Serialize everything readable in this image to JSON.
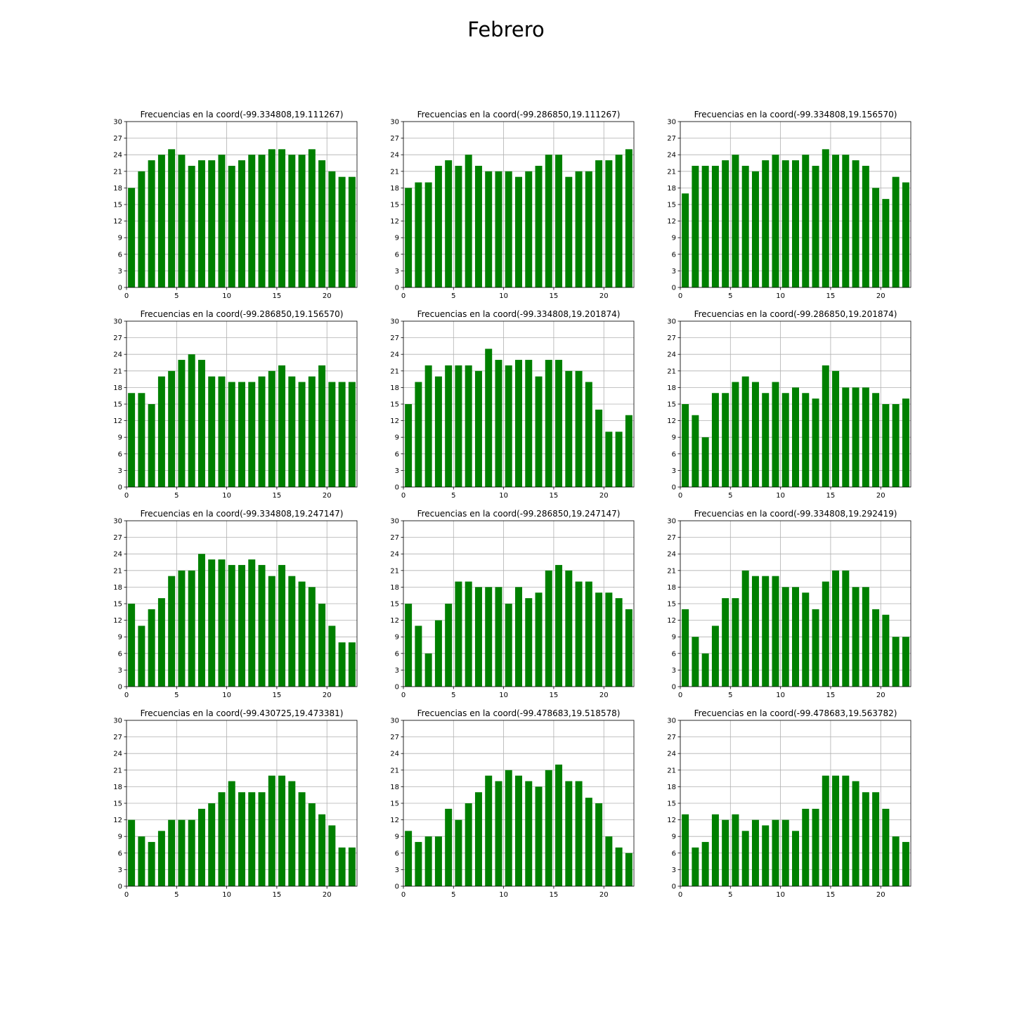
{
  "figure_title": "Febrero",
  "bar_color": "#008000",
  "grid_color": "#b0b0b0",
  "chart_data": [
    {
      "type": "bar",
      "title": "Frecuencias en la coord(-99.334808,19.111267)",
      "x": [
        0,
        1,
        2,
        3,
        4,
        5,
        6,
        7,
        8,
        9,
        10,
        11,
        12,
        13,
        14,
        15,
        16,
        17,
        18,
        19,
        20,
        21,
        22
      ],
      "values": [
        18,
        21,
        23,
        24,
        25,
        24,
        22,
        23,
        23,
        24,
        22,
        23,
        24,
        24,
        25,
        25,
        24,
        24,
        25,
        23,
        21,
        20,
        20
      ],
      "xlim": [
        0,
        23
      ],
      "ylim": [
        0,
        30
      ],
      "xticks": [
        0,
        5,
        10,
        15,
        20
      ],
      "yticks": [
        0,
        3,
        6,
        9,
        12,
        15,
        18,
        21,
        24,
        27,
        30
      ],
      "grid": true
    },
    {
      "type": "bar",
      "title": "Frecuencias en la coord(-99.286850,19.111267)",
      "x": [
        0,
        1,
        2,
        3,
        4,
        5,
        6,
        7,
        8,
        9,
        10,
        11,
        12,
        13,
        14,
        15,
        16,
        17,
        18,
        19,
        20,
        21,
        22
      ],
      "values": [
        18,
        19,
        19,
        22,
        23,
        22,
        24,
        22,
        21,
        21,
        21,
        20,
        21,
        22,
        24,
        24,
        20,
        21,
        21,
        23,
        23,
        24,
        25
      ],
      "xlim": [
        0,
        23
      ],
      "ylim": [
        0,
        30
      ],
      "xticks": [
        0,
        5,
        10,
        15,
        20
      ],
      "yticks": [
        0,
        3,
        6,
        9,
        12,
        15,
        18,
        21,
        24,
        27,
        30
      ],
      "grid": true
    },
    {
      "type": "bar",
      "title": "Frecuencias en la coord(-99.334808,19.156570)",
      "x": [
        0,
        1,
        2,
        3,
        4,
        5,
        6,
        7,
        8,
        9,
        10,
        11,
        12,
        13,
        14,
        15,
        16,
        17,
        18,
        19,
        20,
        21,
        22
      ],
      "values": [
        17,
        22,
        22,
        22,
        23,
        24,
        22,
        21,
        23,
        24,
        23,
        23,
        24,
        22,
        25,
        24,
        24,
        23,
        22,
        18,
        16,
        20,
        19
      ],
      "xlim": [
        0,
        23
      ],
      "ylim": [
        0,
        30
      ],
      "xticks": [
        0,
        5,
        10,
        15,
        20
      ],
      "yticks": [
        0,
        3,
        6,
        9,
        12,
        15,
        18,
        21,
        24,
        27,
        30
      ],
      "grid": true
    },
    {
      "type": "bar",
      "title": "Frecuencias en la coord(-99.286850,19.156570)",
      "x": [
        0,
        1,
        2,
        3,
        4,
        5,
        6,
        7,
        8,
        9,
        10,
        11,
        12,
        13,
        14,
        15,
        16,
        17,
        18,
        19,
        20,
        21,
        22
      ],
      "values": [
        17,
        17,
        15,
        20,
        21,
        23,
        24,
        23,
        20,
        20,
        19,
        19,
        19,
        20,
        21,
        22,
        20,
        19,
        20,
        22,
        19,
        19,
        19
      ],
      "xlim": [
        0,
        23
      ],
      "ylim": [
        0,
        30
      ],
      "xticks": [
        0,
        5,
        10,
        15,
        20
      ],
      "yticks": [
        0,
        3,
        6,
        9,
        12,
        15,
        18,
        21,
        24,
        27,
        30
      ],
      "grid": true
    },
    {
      "type": "bar",
      "title": "Frecuencias en la coord(-99.334808,19.201874)",
      "x": [
        0,
        1,
        2,
        3,
        4,
        5,
        6,
        7,
        8,
        9,
        10,
        11,
        12,
        13,
        14,
        15,
        16,
        17,
        18,
        19,
        20,
        21,
        22
      ],
      "values": [
        15,
        19,
        22,
        20,
        22,
        22,
        22,
        21,
        25,
        23,
        22,
        23,
        23,
        20,
        23,
        23,
        21,
        21,
        19,
        14,
        10,
        10,
        13
      ],
      "xlim": [
        0,
        23
      ],
      "ylim": [
        0,
        30
      ],
      "xticks": [
        0,
        5,
        10,
        15,
        20
      ],
      "yticks": [
        0,
        3,
        6,
        9,
        12,
        15,
        18,
        21,
        24,
        27,
        30
      ],
      "grid": true
    },
    {
      "type": "bar",
      "title": "Frecuencias en la coord(-99.286850,19.201874)",
      "x": [
        0,
        1,
        2,
        3,
        4,
        5,
        6,
        7,
        8,
        9,
        10,
        11,
        12,
        13,
        14,
        15,
        16,
        17,
        18,
        19,
        20,
        21,
        22
      ],
      "values": [
        15,
        13,
        9,
        17,
        17,
        19,
        20,
        19,
        17,
        19,
        17,
        18,
        17,
        16,
        22,
        21,
        18,
        18,
        18,
        17,
        15,
        15,
        16
      ],
      "xlim": [
        0,
        23
      ],
      "ylim": [
        0,
        30
      ],
      "xticks": [
        0,
        5,
        10,
        15,
        20
      ],
      "yticks": [
        0,
        3,
        6,
        9,
        12,
        15,
        18,
        21,
        24,
        27,
        30
      ],
      "grid": true
    },
    {
      "type": "bar",
      "title": "Frecuencias en la coord(-99.334808,19.247147)",
      "x": [
        0,
        1,
        2,
        3,
        4,
        5,
        6,
        7,
        8,
        9,
        10,
        11,
        12,
        13,
        14,
        15,
        16,
        17,
        18,
        19,
        20,
        21,
        22
      ],
      "values": [
        15,
        11,
        14,
        16,
        20,
        21,
        21,
        24,
        23,
        23,
        22,
        22,
        23,
        22,
        20,
        22,
        20,
        19,
        18,
        15,
        11,
        8,
        8
      ],
      "xlim": [
        0,
        23
      ],
      "ylim": [
        0,
        30
      ],
      "xticks": [
        0,
        5,
        10,
        15,
        20
      ],
      "yticks": [
        0,
        3,
        6,
        9,
        12,
        15,
        18,
        21,
        24,
        27,
        30
      ],
      "grid": true
    },
    {
      "type": "bar",
      "title": "Frecuencias en la coord(-99.286850,19.247147)",
      "x": [
        0,
        1,
        2,
        3,
        4,
        5,
        6,
        7,
        8,
        9,
        10,
        11,
        12,
        13,
        14,
        15,
        16,
        17,
        18,
        19,
        20,
        21,
        22
      ],
      "values": [
        15,
        11,
        6,
        12,
        15,
        19,
        19,
        18,
        18,
        18,
        15,
        18,
        16,
        17,
        21,
        22,
        21,
        19,
        19,
        17,
        17,
        16,
        14
      ],
      "xlim": [
        0,
        23
      ],
      "ylim": [
        0,
        30
      ],
      "xticks": [
        0,
        5,
        10,
        15,
        20
      ],
      "yticks": [
        0,
        3,
        6,
        9,
        12,
        15,
        18,
        21,
        24,
        27,
        30
      ],
      "grid": true
    },
    {
      "type": "bar",
      "title": "Frecuencias en la coord(-99.334808,19.292419)",
      "x": [
        0,
        1,
        2,
        3,
        4,
        5,
        6,
        7,
        8,
        9,
        10,
        11,
        12,
        13,
        14,
        15,
        16,
        17,
        18,
        19,
        20,
        21,
        22
      ],
      "values": [
        14,
        9,
        6,
        11,
        16,
        16,
        21,
        20,
        20,
        20,
        18,
        18,
        17,
        14,
        19,
        21,
        21,
        18,
        18,
        14,
        13,
        9,
        9
      ],
      "xlim": [
        0,
        23
      ],
      "ylim": [
        0,
        30
      ],
      "xticks": [
        0,
        5,
        10,
        15,
        20
      ],
      "yticks": [
        0,
        3,
        6,
        9,
        12,
        15,
        18,
        21,
        24,
        27,
        30
      ],
      "grid": true
    },
    {
      "type": "bar",
      "title": "Frecuencias en la coord(-99.430725,19.473381)",
      "x": [
        0,
        1,
        2,
        3,
        4,
        5,
        6,
        7,
        8,
        9,
        10,
        11,
        12,
        13,
        14,
        15,
        16,
        17,
        18,
        19,
        20,
        21,
        22
      ],
      "values": [
        12,
        9,
        8,
        10,
        12,
        12,
        12,
        14,
        15,
        17,
        19,
        17,
        17,
        17,
        20,
        20,
        19,
        17,
        15,
        13,
        11,
        7,
        7
      ],
      "xlim": [
        0,
        23
      ],
      "ylim": [
        0,
        30
      ],
      "xticks": [
        0,
        5,
        10,
        15,
        20
      ],
      "yticks": [
        0,
        3,
        6,
        9,
        12,
        15,
        18,
        21,
        24,
        27,
        30
      ],
      "grid": true
    },
    {
      "type": "bar",
      "title": "Frecuencias en la coord(-99.478683,19.518578)",
      "x": [
        0,
        1,
        2,
        3,
        4,
        5,
        6,
        7,
        8,
        9,
        10,
        11,
        12,
        13,
        14,
        15,
        16,
        17,
        18,
        19,
        20,
        21,
        22
      ],
      "values": [
        10,
        8,
        9,
        9,
        14,
        12,
        15,
        17,
        20,
        19,
        21,
        20,
        19,
        18,
        21,
        22,
        19,
        19,
        16,
        15,
        9,
        7,
        6
      ],
      "xlim": [
        0,
        23
      ],
      "ylim": [
        0,
        30
      ],
      "xticks": [
        0,
        5,
        10,
        15,
        20
      ],
      "yticks": [
        0,
        3,
        6,
        9,
        12,
        15,
        18,
        21,
        24,
        27,
        30
      ],
      "grid": true
    },
    {
      "type": "bar",
      "title": "Frecuencias en la coord(-99.478683,19.563782)",
      "x": [
        0,
        1,
        2,
        3,
        4,
        5,
        6,
        7,
        8,
        9,
        10,
        11,
        12,
        13,
        14,
        15,
        16,
        17,
        18,
        19,
        20,
        21,
        22
      ],
      "values": [
        13,
        7,
        8,
        13,
        12,
        13,
        10,
        12,
        11,
        12,
        12,
        10,
        14,
        14,
        20,
        20,
        20,
        19,
        17,
        17,
        14,
        9,
        8
      ],
      "xlim": [
        0,
        23
      ],
      "ylim": [
        0,
        30
      ],
      "xticks": [
        0,
        5,
        10,
        15,
        20
      ],
      "yticks": [
        0,
        3,
        6,
        9,
        12,
        15,
        18,
        21,
        24,
        27,
        30
      ],
      "grid": true
    }
  ]
}
